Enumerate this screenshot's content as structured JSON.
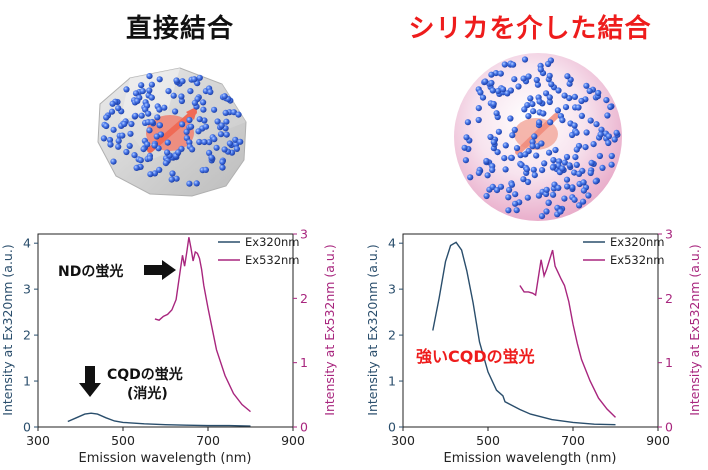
{
  "panels": [
    {
      "title": "直接結合",
      "title_color": "#111111",
      "illustration": "bare-nanodiamond-with-qd-dots",
      "chart_data": {
        "type": "line",
        "xlabel": "Emission wavelength (nm)",
        "ylabel_left": "Intensity at Ex320nm (a.u.)",
        "ylabel_right": "Intensity at Ex532nm (a.u.)",
        "xlim": [
          300,
          900
        ],
        "ylim_left": [
          0,
          4.2
        ],
        "ylim_right": [
          0,
          3.0
        ],
        "x_ticks": [
          "300",
          "500",
          "700",
          "900"
        ],
        "y_ticks_left": [
          "0",
          "1",
          "2",
          "3",
          "4"
        ],
        "y_ticks_right": [
          "0",
          "1",
          "2",
          "3"
        ],
        "legend_position": "top-right",
        "series": [
          {
            "name": "Ex320nm",
            "axis": "left",
            "color": "#2a4e6c",
            "x": [
              370,
              390,
              410,
              425,
              440,
              460,
              480,
              500,
              550,
              600,
              650,
              700,
              750,
              800
            ],
            "y": [
              0.12,
              0.2,
              0.28,
              0.3,
              0.28,
              0.2,
              0.13,
              0.1,
              0.07,
              0.05,
              0.04,
              0.03,
              0.03,
              0.02
            ]
          },
          {
            "name": "Ex532nm",
            "axis": "right",
            "color": "#a8267e",
            "x": [
              575,
              585,
              595,
              605,
              615,
              625,
              635,
              640,
              645,
              650,
              655,
              660,
              665,
              670,
              675,
              680,
              685,
              690,
              700,
              710,
              720,
              740,
              760,
              780,
              800
            ],
            "y": [
              1.68,
              1.66,
              1.72,
              1.75,
              1.82,
              1.98,
              2.45,
              2.67,
              2.5,
              2.72,
              2.95,
              2.78,
              2.58,
              2.72,
              2.7,
              2.62,
              2.45,
              2.2,
              1.85,
              1.52,
              1.2,
              0.8,
              0.52,
              0.35,
              0.24
            ]
          }
        ],
        "annotations": [
          {
            "id": "nd",
            "text": "NDの蛍光"
          },
          {
            "id": "cqd_line1",
            "text": "CQDの蛍光"
          },
          {
            "id": "cqd_line2",
            "text": "(消光)"
          }
        ]
      }
    },
    {
      "title": "シリカを介した結合",
      "title_color": "#ee1c1c",
      "illustration": "silica-coated-nanodiamond-with-qd-dots",
      "chart_data": {
        "type": "line",
        "xlabel": "Emission wavelength (nm)",
        "ylabel_left": "Intensity at Ex320nm (a.u.)",
        "ylabel_right": "Intensity at Ex532nm (a.u.)",
        "xlim": [
          300,
          900
        ],
        "ylim_left": [
          0,
          4.2
        ],
        "ylim_right": [
          0,
          3.0
        ],
        "x_ticks": [
          "300",
          "500",
          "700",
          "900"
        ],
        "y_ticks_left": [
          "0",
          "1",
          "2",
          "3",
          "4"
        ],
        "y_ticks_right": [
          "0",
          "1",
          "2",
          "3"
        ],
        "legend_position": "top-right",
        "series": [
          {
            "name": "Ex320nm",
            "axis": "left",
            "color": "#2a4e6c",
            "x": [
              370,
              385,
              400,
              412,
              425,
              438,
              450,
              465,
              480,
              500,
              520,
              535,
              540,
              550,
              575,
              600,
              650,
              700,
              750,
              800
            ],
            "y": [
              2.1,
              2.8,
              3.6,
              3.95,
              4.02,
              3.85,
              3.4,
              2.7,
              1.85,
              1.2,
              0.8,
              0.68,
              0.55,
              0.5,
              0.38,
              0.28,
              0.16,
              0.1,
              0.06,
              0.05
            ]
          },
          {
            "name": "Ex532nm",
            "axis": "right",
            "color": "#a8267e",
            "x": [
              575,
              585,
              595,
              605,
              612,
              618,
              625,
              632,
              638,
              645,
              652,
              658,
              665,
              672,
              680,
              690,
              700,
              710,
              720,
              740,
              760,
              780,
              800
            ],
            "y": [
              2.2,
              2.1,
              2.1,
              2.08,
              2.05,
              2.3,
              2.6,
              2.35,
              2.45,
              2.6,
              2.75,
              2.5,
              2.4,
              2.3,
              2.2,
              1.95,
              1.6,
              1.3,
              1.05,
              0.72,
              0.45,
              0.28,
              0.15
            ]
          }
        ],
        "annotations": [
          {
            "id": "strong",
            "text": "強いCQDの蛍光"
          }
        ]
      }
    }
  ]
}
